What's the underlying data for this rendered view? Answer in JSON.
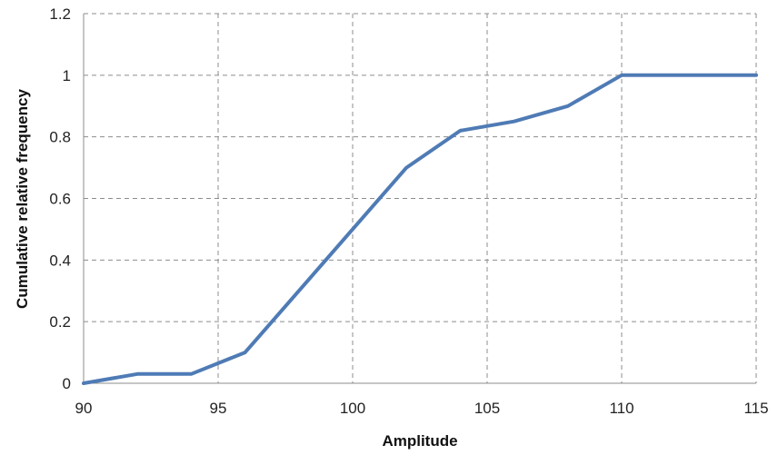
{
  "chart_data": {
    "type": "line",
    "title": "",
    "xlabel": "Amplitude",
    "ylabel": "Cumulative relative frequency",
    "xlim": [
      90,
      115
    ],
    "ylim": [
      0,
      1.2
    ],
    "x_ticks": [
      "90",
      "95",
      "100",
      "105",
      "110",
      "115"
    ],
    "y_ticks": [
      "0",
      "0.2",
      "0.4",
      "0.6",
      "0.8",
      "1",
      "1.2"
    ],
    "grid": true,
    "legend": "none",
    "series": [
      {
        "color": "#4f7bb5",
        "x": [
          90,
          92,
          94,
          96,
          98,
          100,
          102,
          104,
          106,
          108,
          110,
          112,
          114,
          115
        ],
        "y": [
          0,
          0.03,
          0.03,
          0.1,
          0.3,
          0.5,
          0.7,
          0.82,
          0.85,
          0.9,
          1.0,
          1.0,
          1.0,
          1.0
        ]
      }
    ]
  }
}
